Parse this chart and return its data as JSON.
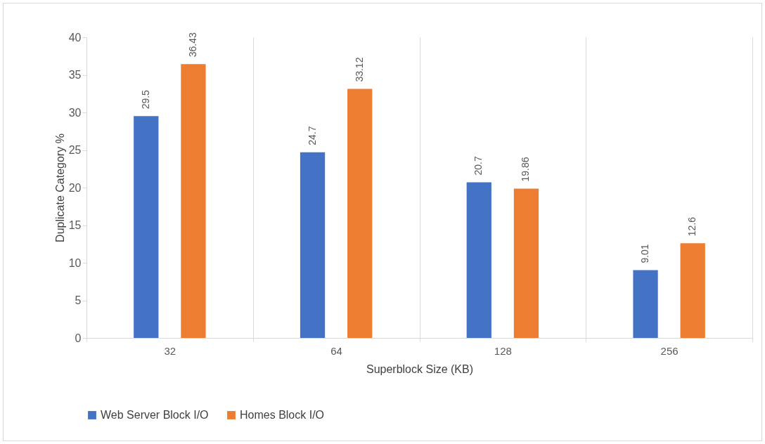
{
  "chart_data": {
    "type": "bar",
    "xlabel": "Superblock Size (KB)",
    "ylabel": "Duplicate Category %",
    "categories": [
      "32",
      "64",
      "128",
      "256"
    ],
    "series": [
      {
        "name": "Web Server Block I/O",
        "color": "#4472c4",
        "values": [
          29.5,
          24.7,
          20.7,
          9.01
        ]
      },
      {
        "name": "Homes Block I/O",
        "color": "#ed7d31",
        "values": [
          36.43,
          33.12,
          19.86,
          12.6
        ]
      }
    ],
    "ylim": [
      0,
      40
    ],
    "yticks": [
      0,
      5,
      10,
      15,
      20,
      25,
      30,
      35,
      40
    ],
    "grid": "x",
    "legend": "bottom",
    "data_labels": true
  }
}
